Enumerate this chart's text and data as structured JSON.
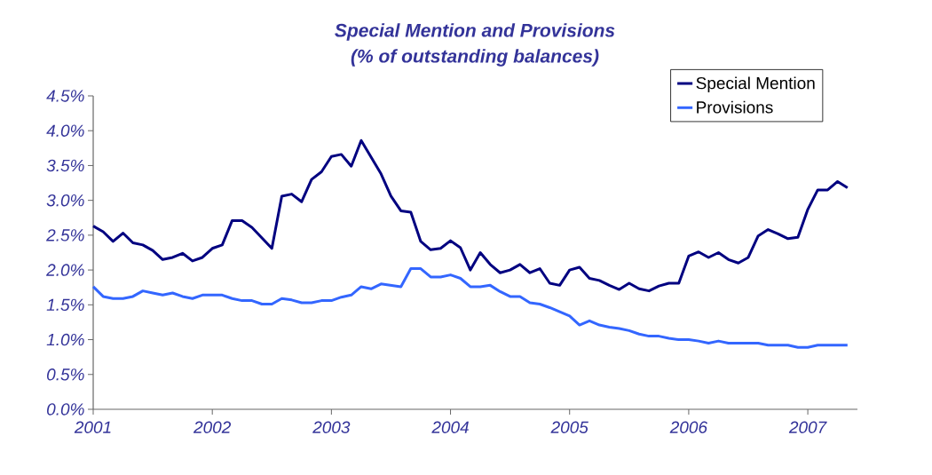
{
  "chart_data": {
    "type": "line",
    "title": "Special Mention and Provisions",
    "subtitle": "(% of outstanding balances)",
    "x": [
      "2001-01",
      "2001-02",
      "2001-03",
      "2001-04",
      "2001-05",
      "2001-06",
      "2001-07",
      "2001-08",
      "2001-09",
      "2001-10",
      "2001-11",
      "2001-12",
      "2002-01",
      "2002-02",
      "2002-03",
      "2002-04",
      "2002-05",
      "2002-06",
      "2002-07",
      "2002-08",
      "2002-09",
      "2002-10",
      "2002-11",
      "2002-12",
      "2003-01",
      "2003-02",
      "2003-03",
      "2003-04",
      "2003-05",
      "2003-06",
      "2003-07",
      "2003-08",
      "2003-09",
      "2003-10",
      "2003-11",
      "2003-12",
      "2004-01",
      "2004-02",
      "2004-03",
      "2004-04",
      "2004-05",
      "2004-06",
      "2004-07",
      "2004-08",
      "2004-09",
      "2004-10",
      "2004-11",
      "2004-12",
      "2005-01",
      "2005-02",
      "2005-03",
      "2005-04",
      "2005-05",
      "2005-06",
      "2005-07",
      "2005-08",
      "2005-09",
      "2005-10",
      "2005-11",
      "2005-12",
      "2006-01",
      "2006-02",
      "2006-03",
      "2006-04",
      "2006-05",
      "2006-06",
      "2006-07",
      "2006-08",
      "2006-09",
      "2006-10",
      "2006-11",
      "2006-12",
      "2007-01",
      "2007-02",
      "2007-03",
      "2007-04",
      "2007-05"
    ],
    "series": [
      {
        "name": "Special Mention",
        "color": "#000080",
        "values": [
          2.63,
          2.55,
          2.41,
          2.53,
          2.39,
          2.36,
          2.28,
          2.15,
          2.18,
          2.24,
          2.13,
          2.18,
          2.31,
          2.36,
          2.71,
          2.71,
          2.61,
          2.46,
          2.31,
          3.06,
          3.09,
          2.98,
          3.3,
          3.41,
          3.63,
          3.66,
          3.49,
          3.86,
          3.62,
          3.38,
          3.06,
          2.85,
          2.83,
          2.41,
          2.29,
          2.31,
          2.42,
          2.32,
          2.0,
          2.25,
          2.08,
          1.96,
          2.0,
          2.08,
          1.96,
          2.02,
          1.81,
          1.78,
          2.0,
          2.04,
          1.88,
          1.85,
          1.78,
          1.72,
          1.81,
          1.73,
          1.7,
          1.77,
          1.81,
          1.81,
          2.2,
          2.26,
          2.18,
          2.25,
          2.15,
          2.1,
          2.18,
          2.49,
          2.58,
          2.52,
          2.45,
          2.47,
          2.87,
          3.15,
          3.15,
          3.27,
          3.18
        ]
      },
      {
        "name": "Provisions",
        "color": "#3366ff",
        "values": [
          1.76,
          1.62,
          1.59,
          1.59,
          1.62,
          1.7,
          1.67,
          1.64,
          1.67,
          1.62,
          1.59,
          1.64,
          1.64,
          1.64,
          1.59,
          1.56,
          1.56,
          1.51,
          1.51,
          1.59,
          1.57,
          1.53,
          1.53,
          1.56,
          1.56,
          1.61,
          1.64,
          1.76,
          1.73,
          1.8,
          1.78,
          1.76,
          2.02,
          2.02,
          1.9,
          1.9,
          1.93,
          1.88,
          1.76,
          1.76,
          1.78,
          1.69,
          1.62,
          1.62,
          1.53,
          1.51,
          1.46,
          1.4,
          1.34,
          1.21,
          1.27,
          1.21,
          1.18,
          1.16,
          1.13,
          1.08,
          1.05,
          1.05,
          1.02,
          1.0,
          1.0,
          0.98,
          0.95,
          0.98,
          0.95,
          0.95,
          0.95,
          0.95,
          0.92,
          0.92,
          0.92,
          0.89,
          0.89,
          0.92,
          0.92,
          0.92,
          0.92
        ]
      }
    ],
    "xlim": [
      "2001-01",
      "2007-06"
    ],
    "xticks": [
      "2001",
      "2002",
      "2003",
      "2004",
      "2005",
      "2006",
      "2007"
    ],
    "ylim": [
      0,
      4.5
    ],
    "yticks": [
      {
        "value": 0,
        "label": "0.0%"
      },
      {
        "value": 0.5,
        "label": "0.5%"
      },
      {
        "value": 1.0,
        "label": "1.0%"
      },
      {
        "value": 1.5,
        "label": "1.5%"
      },
      {
        "value": 2.0,
        "label": "2.0%"
      },
      {
        "value": 2.5,
        "label": "2.5%"
      },
      {
        "value": 3.0,
        "label": "3.0%"
      },
      {
        "value": 3.5,
        "label": "3.5%"
      },
      {
        "value": 4.0,
        "label": "4.0%"
      },
      {
        "value": 4.5,
        "label": "4.5%"
      }
    ],
    "legend": "top right",
    "grid": false,
    "marker": "none",
    "line_style": "solid"
  }
}
